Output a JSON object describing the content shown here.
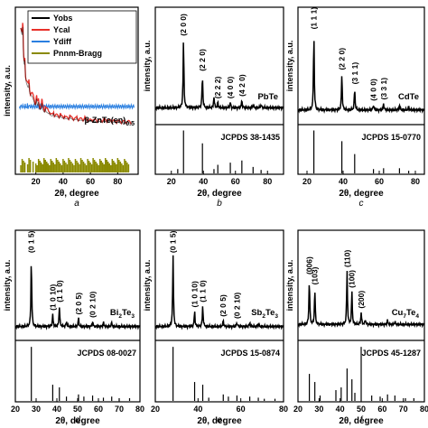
{
  "figure": {
    "panel_letters": [
      "a",
      "b",
      "c",
      "d",
      "e",
      "f"
    ]
  },
  "chart_data": [
    {
      "panel": "a",
      "type": "line",
      "xlabel": "2θ, degree",
      "ylabel": "intensity, a.u.",
      "xticks": [
        20,
        40,
        60,
        80
      ],
      "xlim": [
        5,
        95
      ],
      "phase_label": "β-ZnTe(en)0.5",
      "legend": [
        "Yobs",
        "Ycal",
        "Ydiff",
        "Pnnm-Bragg"
      ],
      "legend_colors": [
        "#000000",
        "#e8302a",
        "#2a7fe0",
        "#8a8a00"
      ],
      "series": [
        {
          "name": "Yobs",
          "x": [
            9,
            10,
            11,
            12,
            13,
            15,
            17,
            19,
            20,
            21,
            22,
            24,
            26,
            28,
            30,
            32,
            35,
            38,
            42,
            46,
            50,
            55,
            60,
            65,
            70,
            75,
            80,
            85,
            90
          ],
          "values": [
            0.98,
            0.88,
            0.7,
            0.62,
            0.55,
            0.48,
            0.45,
            0.4,
            0.38,
            0.37,
            0.36,
            0.35,
            0.33,
            0.32,
            0.31,
            0.3,
            0.3,
            0.29,
            0.28,
            0.28,
            0.27,
            0.27,
            0.26,
            0.26,
            0.26,
            0.26,
            0.25,
            0.25,
            0.25
          ]
        },
        {
          "name": "Ydiff",
          "x": [
            8,
            20,
            40,
            60,
            80,
            92
          ],
          "values": [
            0.1,
            0.1,
            0.1,
            0.1,
            0.1,
            0.1
          ]
        }
      ],
      "peaks": [
        {
          "x": 10.5,
          "height": 0.62
        },
        {
          "x": 12.0,
          "height": 0.3
        },
        {
          "x": 15.0,
          "height": 0.2
        },
        {
          "x": 20.5,
          "height": 0.18
        },
        {
          "x": 22.0,
          "height": 0.12
        },
        {
          "x": 24.5,
          "height": 0.16
        },
        {
          "x": 27.0,
          "height": 0.12
        },
        {
          "x": 30.0,
          "height": 0.08
        },
        {
          "x": 33.0,
          "height": 0.08
        },
        {
          "x": 38.0,
          "height": 0.07
        },
        {
          "x": 41.0,
          "height": 0.06
        },
        {
          "x": 45.0,
          "height": 0.06
        },
        {
          "x": 50.0,
          "height": 0.05
        },
        {
          "x": 56.0,
          "height": 0.04
        },
        {
          "x": 62.0,
          "height": 0.04
        },
        {
          "x": 70.0,
          "height": 0.03
        },
        {
          "x": 80.0,
          "height": 0.03
        }
      ],
      "bragg_positions": [
        9,
        10,
        11,
        12,
        14,
        15,
        16,
        18,
        20,
        21,
        22,
        23,
        24,
        25,
        26,
        27,
        28,
        29,
        30,
        31,
        32,
        33,
        34,
        35,
        36,
        37,
        38,
        39,
        40,
        41,
        42,
        43,
        44,
        45,
        46,
        47,
        48,
        49,
        50,
        51,
        52,
        53,
        54,
        55,
        56,
        57,
        58,
        59,
        60,
        61,
        62,
        63,
        64,
        65,
        66,
        67,
        68,
        69,
        70,
        71,
        72,
        73,
        74,
        75,
        76,
        77,
        78,
        79,
        80,
        81,
        82,
        83,
        84,
        85,
        86,
        87,
        88
      ]
    },
    {
      "panel": "b",
      "type": "line",
      "xlabel": "2θ, degree",
      "ylabel": "intensity, a.u.",
      "xticks": [
        20,
        40,
        60,
        80
      ],
      "xlim": [
        10,
        90
      ],
      "compound": "PbTe",
      "reference": "JCPDS 38-1435",
      "baseline": 0.12,
      "peaks": [
        {
          "x": 27.6,
          "height": 0.62,
          "label": "(2 0 0)"
        },
        {
          "x": 39.4,
          "height": 0.3,
          "label": "(2 2 0)"
        },
        {
          "x": 46.6,
          "height": 0.1
        },
        {
          "x": 49.0,
          "height": 0.05,
          "label": "(2 2 2)"
        },
        {
          "x": 56.8,
          "height": 0.05,
          "label": "(4 0 0)"
        },
        {
          "x": 64.0,
          "height": 0.07,
          "label": "(4 2 0)"
        },
        {
          "x": 71.0,
          "height": 0.03
        },
        {
          "x": 76.0,
          "height": 0.03
        }
      ],
      "ref_lines": [
        {
          "x": 24.0,
          "h": 0.1
        },
        {
          "x": 27.6,
          "h": 1.0
        },
        {
          "x": 39.4,
          "h": 0.7
        },
        {
          "x": 46.6,
          "h": 0.1
        },
        {
          "x": 49.0,
          "h": 0.2
        },
        {
          "x": 56.8,
          "h": 0.25
        },
        {
          "x": 64.0,
          "h": 0.3
        },
        {
          "x": 71.0,
          "h": 0.15
        },
        {
          "x": 76.0,
          "h": 0.08
        }
      ]
    },
    {
      "panel": "c",
      "type": "line",
      "xlabel": "2θ, degree",
      "ylabel": "intensity, a.u.",
      "xticks": [
        20,
        40,
        60,
        80
      ],
      "xlim": [
        15,
        85
      ],
      "compound": "CdTe",
      "reference": "JCPDS 15-0770",
      "baseline": 0.1,
      "peaks": [
        {
          "x": 23.8,
          "height": 0.7,
          "label": "(1 1 1)"
        },
        {
          "x": 39.3,
          "height": 0.33,
          "label": "(2 2 0)"
        },
        {
          "x": 46.4,
          "height": 0.2,
          "label": "(3 1 1)"
        },
        {
          "x": 56.8,
          "height": 0.05,
          "label": "(4 0 0)"
        },
        {
          "x": 62.4,
          "height": 0.06,
          "label": "(3 3 1)"
        },
        {
          "x": 71.2,
          "height": 0.05
        },
        {
          "x": 76.3,
          "height": 0.03
        }
      ],
      "ref_lines": [
        {
          "x": 23.8,
          "h": 1.0
        },
        {
          "x": 39.3,
          "h": 0.75
        },
        {
          "x": 46.4,
          "h": 0.45
        },
        {
          "x": 56.8,
          "h": 0.1
        },
        {
          "x": 62.4,
          "h": 0.12
        },
        {
          "x": 71.2,
          "h": 0.12
        },
        {
          "x": 76.3,
          "h": 0.06
        }
      ]
    },
    {
      "panel": "d",
      "type": "line",
      "xlabel": "2θ, degree",
      "ylabel": "intensity, a.u.",
      "xticks": [
        20,
        30,
        40,
        50,
        60,
        70,
        80
      ],
      "xlim": [
        20,
        80
      ],
      "compound": "Bi",
      "compound_sub1": "2",
      "compound_mid": "Te",
      "compound_sub2": "3",
      "reference": "JCPDS 08-0027",
      "baseline": 0.1,
      "peaks": [
        {
          "x": 27.7,
          "height": 0.68,
          "label": "(0 1 5)"
        },
        {
          "x": 38.0,
          "height": 0.12,
          "label": "(1 0 10)"
        },
        {
          "x": 41.2,
          "height": 0.2,
          "label": "(1 1 0)"
        },
        {
          "x": 44.6,
          "height": 0.05
        },
        {
          "x": 50.4,
          "height": 0.08,
          "label": "(2 0 5)"
        },
        {
          "x": 57.2,
          "height": 0.05,
          "label": "(0 2 10)"
        },
        {
          "x": 62.4,
          "height": 0.04
        },
        {
          "x": 66.4,
          "height": 0.04
        }
      ],
      "ref_lines": [
        {
          "x": 27.7,
          "h": 1.0
        },
        {
          "x": 38.0,
          "h": 0.3
        },
        {
          "x": 41.2,
          "h": 0.25
        },
        {
          "x": 44.6,
          "h": 0.08
        },
        {
          "x": 50.4,
          "h": 0.12
        },
        {
          "x": 53.0,
          "h": 0.08
        },
        {
          "x": 57.2,
          "h": 0.1
        },
        {
          "x": 62.4,
          "h": 0.06
        },
        {
          "x": 66.4,
          "h": 0.08
        },
        {
          "x": 70.0,
          "h": 0.05
        },
        {
          "x": 75.0,
          "h": 0.05
        }
      ]
    },
    {
      "panel": "e",
      "type": "line",
      "xlabel": "2θ, degree",
      "ylabel": "intensity, a.u.",
      "xticks": [
        20,
        40,
        60,
        80
      ],
      "xlim": [
        20,
        80
      ],
      "compound": "Sb",
      "compound_sub1": "2",
      "compound_mid": "Te",
      "compound_sub2": "3",
      "reference": "JCPDS 15-0874",
      "baseline": 0.1,
      "peaks": [
        {
          "x": 28.3,
          "height": 0.68,
          "label": "(0 1 5)"
        },
        {
          "x": 38.4,
          "height": 0.15,
          "label": "(1 0 10)"
        },
        {
          "x": 42.2,
          "height": 0.2,
          "label": "(1 1 0)"
        },
        {
          "x": 51.8,
          "height": 0.06,
          "label": "(2 0 5)"
        },
        {
          "x": 58.2,
          "height": 0.04,
          "label": "(0 2 10)"
        },
        {
          "x": 64.2,
          "height": 0.04
        },
        {
          "x": 68.2,
          "height": 0.03
        }
      ],
      "ref_lines": [
        {
          "x": 28.3,
          "h": 1.0
        },
        {
          "x": 38.4,
          "h": 0.35
        },
        {
          "x": 42.2,
          "h": 0.3
        },
        {
          "x": 45.0,
          "h": 0.06
        },
        {
          "x": 51.8,
          "h": 0.12
        },
        {
          "x": 54.2,
          "h": 0.08
        },
        {
          "x": 58.2,
          "h": 0.1
        },
        {
          "x": 64.2,
          "h": 0.08
        },
        {
          "x": 68.2,
          "h": 0.06
        },
        {
          "x": 71.0,
          "h": 0.04
        },
        {
          "x": 76.0,
          "h": 0.04
        }
      ]
    },
    {
      "panel": "f",
      "type": "line",
      "xlabel": "2θ, degree",
      "ylabel": "intensity, a.u.",
      "xticks": [
        20,
        30,
        40,
        50,
        60,
        70,
        80
      ],
      "xlim": [
        20,
        80
      ],
      "compound": "Cu",
      "compound_sub1": "7",
      "compound_mid": "Te",
      "compound_sub2": "4",
      "reference": "JCPDS 45-1287",
      "baseline": 0.12,
      "peaks": [
        {
          "x": 25.4,
          "height": 0.45,
          "label": "(006)"
        },
        {
          "x": 28.0,
          "height": 0.35,
          "label": "(103)"
        },
        {
          "x": 43.3,
          "height": 0.52,
          "label": "(110)"
        },
        {
          "x": 45.6,
          "height": 0.32,
          "label": "(100)"
        },
        {
          "x": 50.0,
          "height": 0.12,
          "label": "(200)"
        },
        {
          "x": 52.0,
          "height": 0.05
        },
        {
          "x": 62.5,
          "height": 0.04
        },
        {
          "x": 66.0,
          "height": 0.03
        }
      ],
      "ref_lines": [
        {
          "x": 25.4,
          "h": 0.5
        },
        {
          "x": 28.0,
          "h": 0.35
        },
        {
          "x": 30.5,
          "h": 0.1
        },
        {
          "x": 38.0,
          "h": 0.2
        },
        {
          "x": 40.5,
          "h": 0.25
        },
        {
          "x": 43.3,
          "h": 0.6
        },
        {
          "x": 45.6,
          "h": 0.4
        },
        {
          "x": 47.0,
          "h": 0.15
        },
        {
          "x": 50.0,
          "h": 1.0
        },
        {
          "x": 55.0,
          "h": 0.1
        },
        {
          "x": 59.0,
          "h": 0.08
        },
        {
          "x": 62.5,
          "h": 0.12
        },
        {
          "x": 66.0,
          "h": 0.1
        },
        {
          "x": 71.0,
          "h": 0.05
        },
        {
          "x": 75.0,
          "h": 0.05
        }
      ]
    }
  ]
}
